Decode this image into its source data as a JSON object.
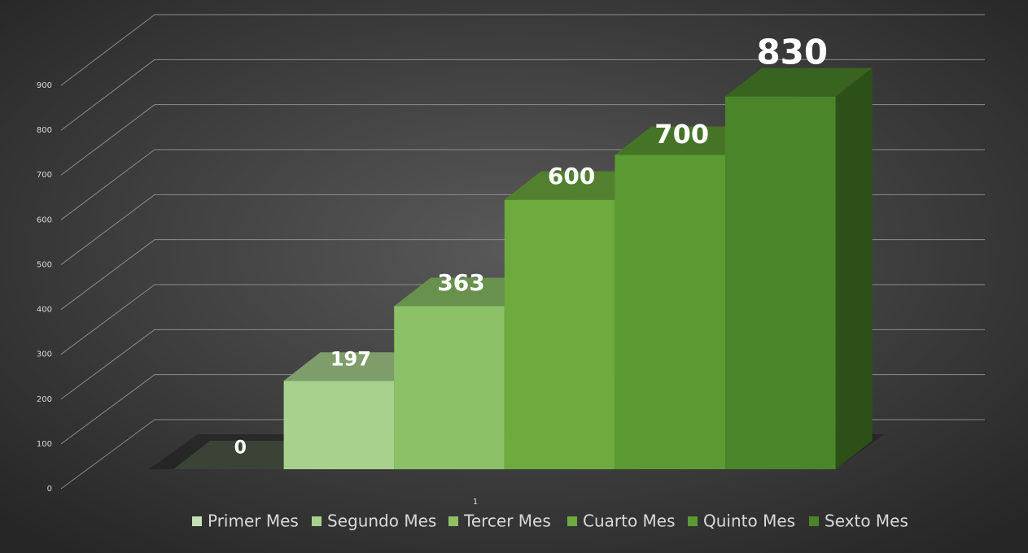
{
  "chart_data": {
    "type": "bar3d",
    "categories": [
      "1"
    ],
    "series": [
      {
        "name": "Primer Mes",
        "color": "#c5e0b4",
        "values": [
          0
        ]
      },
      {
        "name": "Segundo Mes",
        "color": "#a9d18e",
        "values": [
          197
        ]
      },
      {
        "name": "Tercer Mes",
        "color": "#8cc168",
        "values": [
          363
        ]
      },
      {
        "name": "Cuarto Mes",
        "color": "#6eaa3e",
        "values": [
          600
        ]
      },
      {
        "name": "Quinto Mes",
        "color": "#5c9a34",
        "values": [
          700
        ]
      },
      {
        "name": "Sexto Mes",
        "color": "#4b8529",
        "values": [
          830
        ]
      }
    ],
    "ylim": [
      0,
      900
    ],
    "yticks": [
      0,
      100,
      200,
      300,
      400,
      500,
      600,
      700,
      800,
      900
    ],
    "grid": true,
    "legend": "bottom"
  }
}
